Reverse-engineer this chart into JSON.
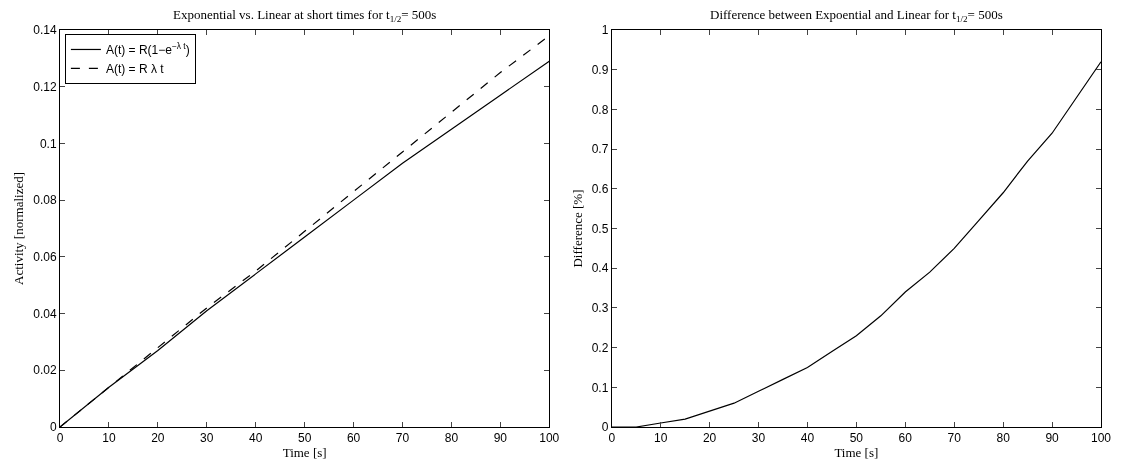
{
  "chart_data": [
    {
      "type": "line",
      "title": "Exponential vs. Linear at short times for t$_{1/2}$= 500s",
      "xlabel": "Time [s]",
      "ylabel": "Activity [normalized]",
      "x": [
        0,
        10,
        20,
        30,
        40,
        50,
        60,
        70,
        80,
        90,
        100
      ],
      "series": [
        {
          "name": "A(t) = R(1−e$^{−λ t}$)",
          "color": "#000000",
          "line_style": "solid",
          "values": [
            0,
            0.014,
            0.027,
            0.041,
            0.054,
            0.067,
            0.08,
            0.093,
            0.105,
            0.117,
            0.129
          ]
        },
        {
          "name": "A(t) = R λ t",
          "color": "#000000",
          "line_style": "dashed",
          "values": [
            0,
            0.014,
            0.028,
            0.042,
            0.055,
            0.069,
            0.083,
            0.097,
            0.111,
            0.125,
            0.138
          ]
        }
      ],
      "xlim": [
        0,
        100
      ],
      "ylim": [
        0,
        0.14
      ],
      "xticks": [
        0,
        10,
        20,
        30,
        40,
        50,
        60,
        70,
        80,
        90,
        100
      ],
      "yticks": [
        0,
        0.02,
        0.04,
        0.06,
        0.08,
        0.1,
        0.12,
        0.14
      ],
      "legend": "top left"
    },
    {
      "type": "line",
      "title": "Difference between Expoential and Linear for t$_{1/2}$= 500s",
      "xlabel": "Time [s]",
      "ylabel": "Difference [%]",
      "x": [
        0,
        5,
        10,
        15,
        20,
        25,
        30,
        35,
        40,
        45,
        50,
        55,
        60,
        65,
        70,
        75,
        80,
        85,
        90,
        95,
        100
      ],
      "series": [
        {
          "color": "#000000",
          "line_style": "solid",
          "values": [
            0,
            0.0,
            0.01,
            0.02,
            0.04,
            0.06,
            0.09,
            0.12,
            0.15,
            0.19,
            0.23,
            0.28,
            0.34,
            0.39,
            0.45,
            0.52,
            0.59,
            0.67,
            0.74,
            0.83,
            0.92
          ]
        }
      ],
      "xlim": [
        0,
        100
      ],
      "ylim": [
        0,
        1
      ],
      "xticks": [
        0,
        10,
        20,
        30,
        40,
        50,
        60,
        70,
        80,
        90,
        100
      ],
      "yticks": [
        0,
        0.1,
        0.2,
        0.3,
        0.4,
        0.5,
        0.6,
        0.7,
        0.8,
        0.9,
        1
      ],
      "legend": false
    }
  ]
}
